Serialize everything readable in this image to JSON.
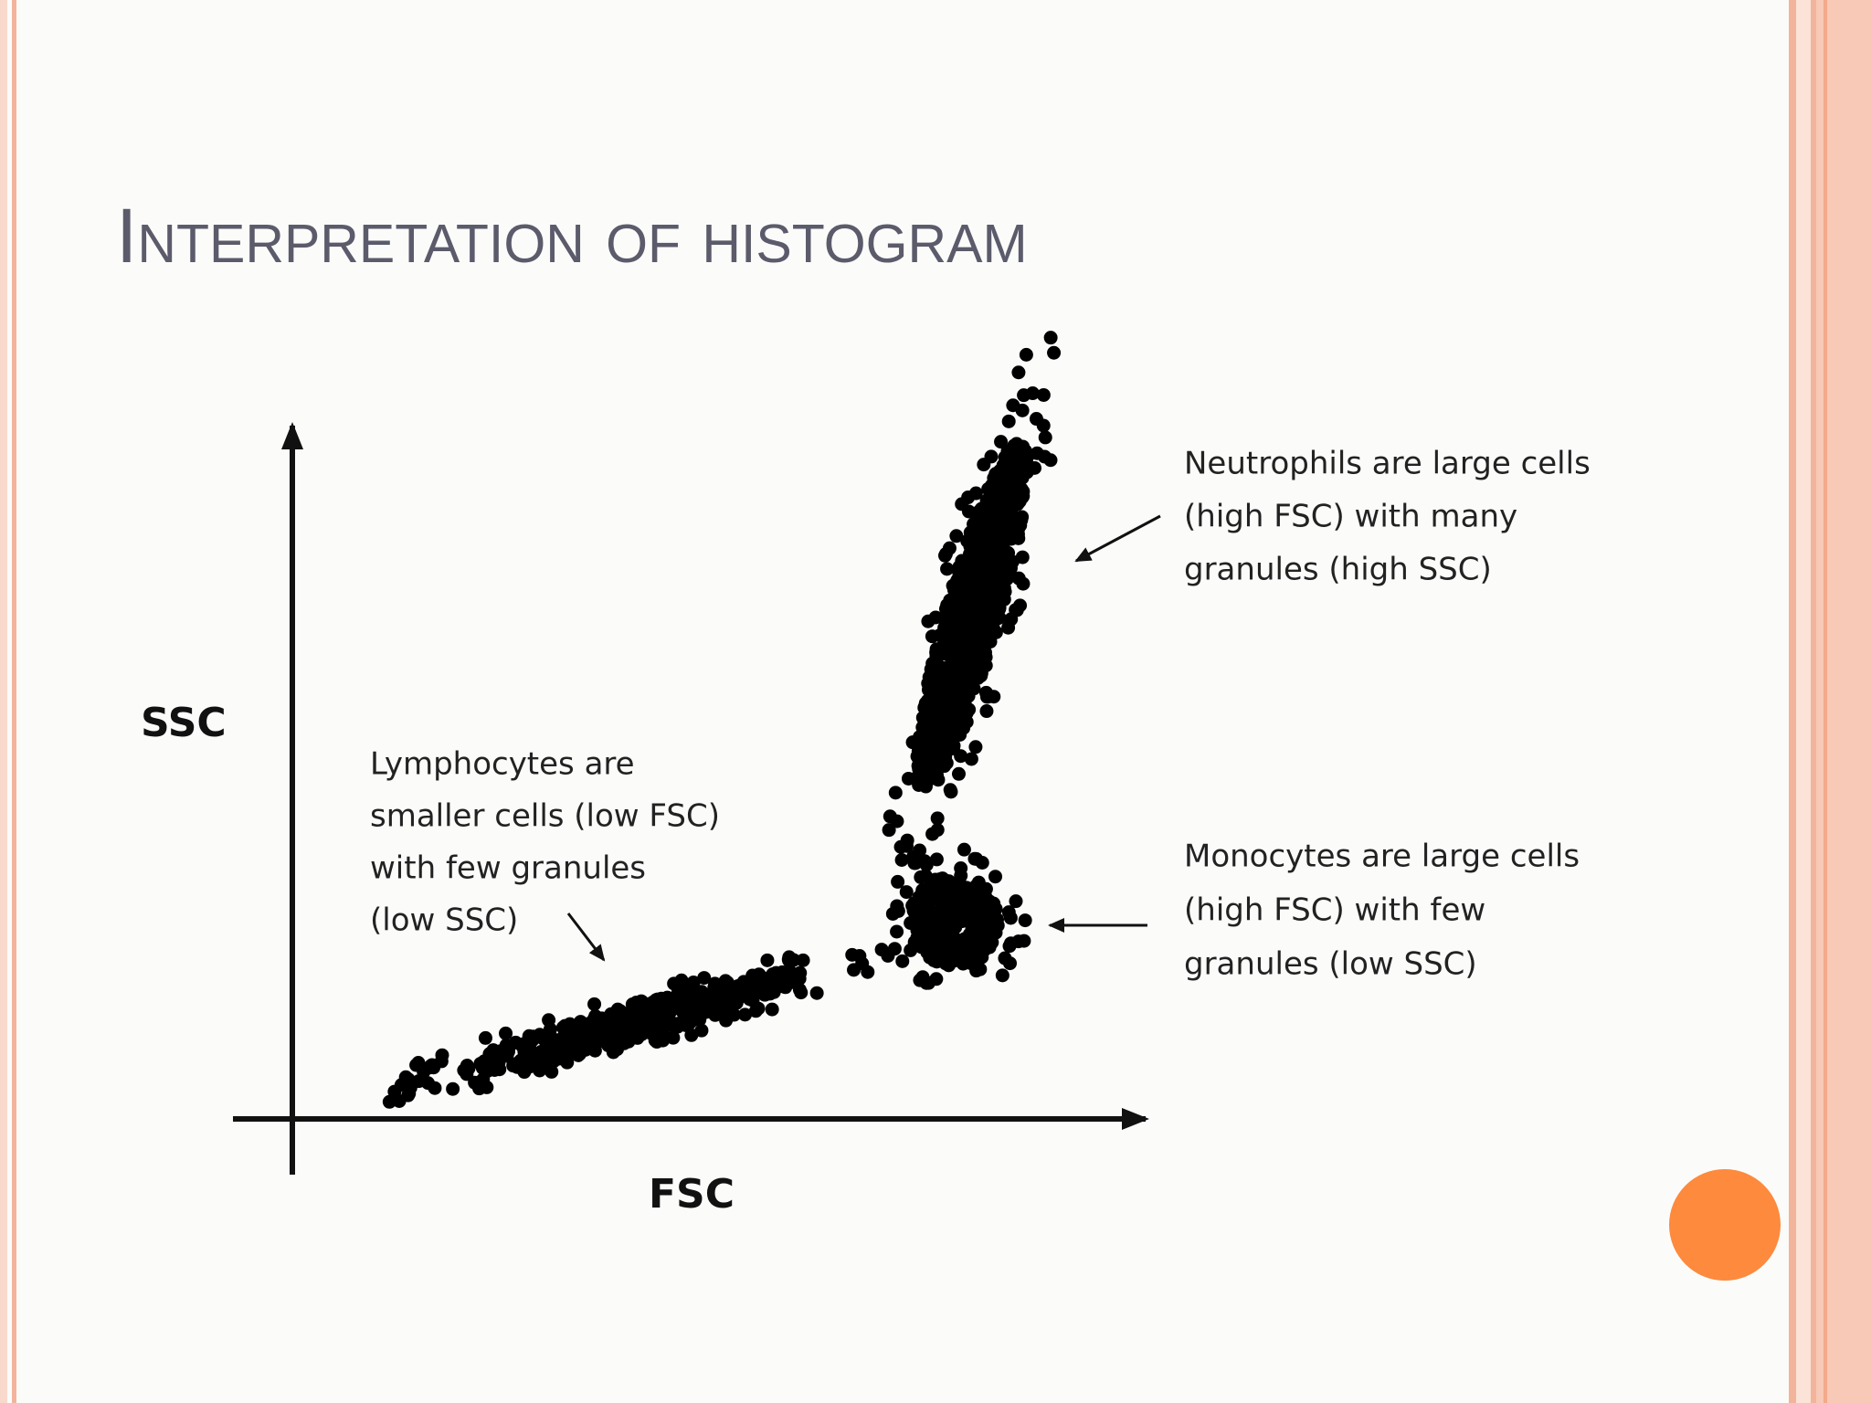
{
  "title": "Interpretation of histogram",
  "diagram": {
    "y_axis_label": "SSC",
    "x_axis_label": "FSC",
    "annotations": [
      {
        "lines": [
          "Lymphocytes are",
          "smaller cells (low FSC)",
          "with few granules",
          "(low SSC)"
        ]
      },
      {
        "lines": [
          "Neutrophils are large cells",
          "(high FSC) with many",
          "granules (high SSC)"
        ]
      },
      {
        "lines": [
          "Monocytes are large cells",
          "(high FSC) with few",
          "granules (low SSC)"
        ]
      }
    ]
  }
}
